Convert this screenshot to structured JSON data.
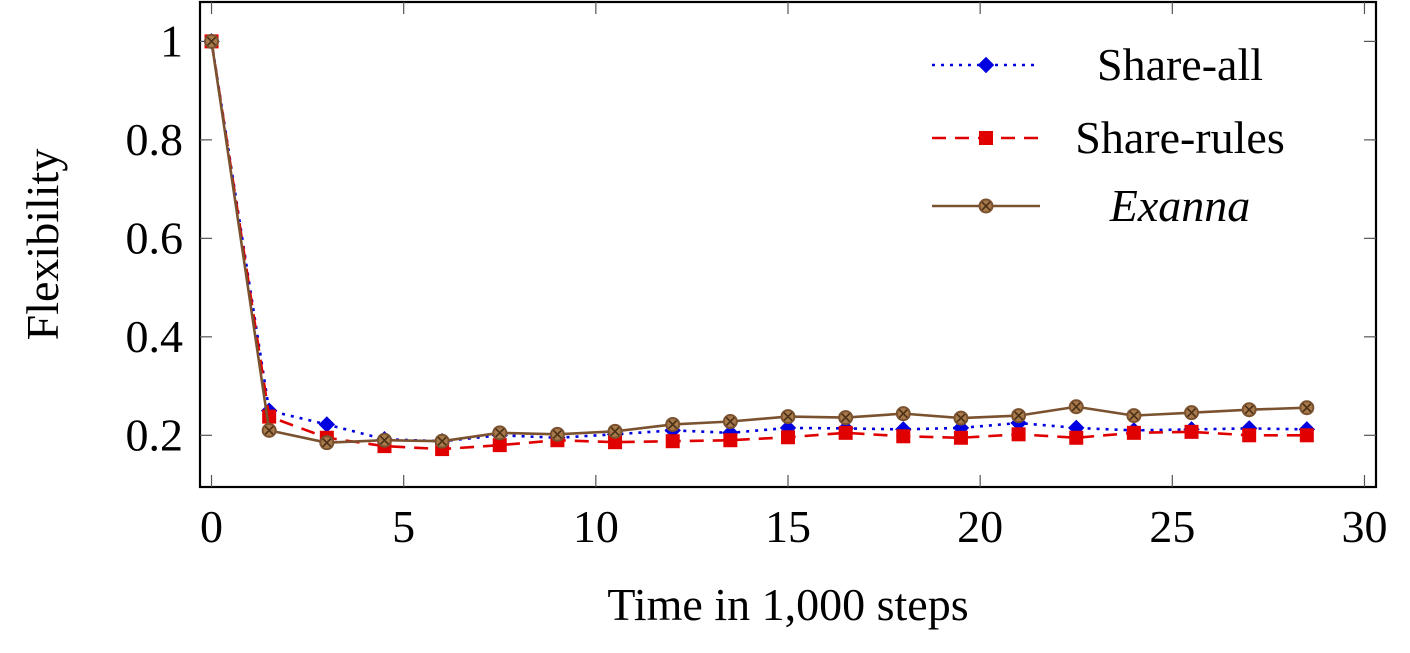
{
  "chart_data": {
    "type": "line",
    "xlabel": "Time in 1,000 steps",
    "ylabel": "Flexibility",
    "xlim": [
      -0.3,
      30.3
    ],
    "ylim": [
      0.095,
      1.08
    ],
    "xticks": [
      0,
      5,
      10,
      15,
      20,
      25,
      30
    ],
    "yticks": [
      0.2,
      0.4,
      0.6,
      0.8,
      1
    ],
    "xtick_labels": [
      "0",
      "5",
      "10",
      "15",
      "20",
      "25",
      "30"
    ],
    "ytick_labels": [
      "0.2",
      "0.4",
      "0.6",
      "0.8",
      "1"
    ],
    "grid": false,
    "legend_position": "top-right",
    "x": [
      0,
      1.5,
      3,
      4.5,
      6,
      7.5,
      9,
      10.5,
      12,
      13.5,
      15,
      16.5,
      18,
      19.5,
      21,
      22.5,
      24,
      25.5,
      27,
      28.5
    ],
    "series": [
      {
        "name": "Share-all",
        "color": "#0000e0",
        "line_style": "dotted",
        "marker": "diamond",
        "values": [
          1.0,
          0.25,
          0.222,
          0.192,
          0.188,
          0.2,
          0.195,
          0.202,
          0.21,
          0.205,
          0.215,
          0.214,
          0.212,
          0.215,
          0.225,
          0.215,
          0.21,
          0.212,
          0.214,
          0.212
        ]
      },
      {
        "name": "Share-rules",
        "color": "#e00000",
        "line_style": "dashed",
        "marker": "square",
        "values": [
          1.0,
          0.238,
          0.195,
          0.178,
          0.172,
          0.18,
          0.19,
          0.186,
          0.188,
          0.19,
          0.196,
          0.205,
          0.198,
          0.195,
          0.202,
          0.195,
          0.205,
          0.207,
          0.2,
          0.2
        ]
      },
      {
        "name": "Exanna",
        "color": "#7a5230",
        "line_style": "solid",
        "marker": "circle-x",
        "italic": true,
        "values": [
          1.0,
          0.21,
          0.185,
          0.19,
          0.188,
          0.205,
          0.202,
          0.208,
          0.222,
          0.228,
          0.238,
          0.236,
          0.244,
          0.235,
          0.24,
          0.258,
          0.24,
          0.246,
          0.252,
          0.256
        ]
      }
    ]
  }
}
